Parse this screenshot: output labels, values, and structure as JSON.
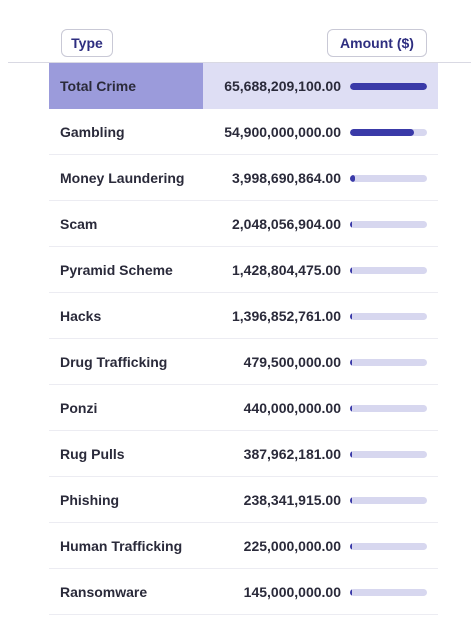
{
  "header": {
    "type_label": "Type",
    "amount_label": "Amount ($)"
  },
  "rows": [
    {
      "type": "Total Crime",
      "amount": "65,688,209,100.00",
      "fraction": 1.0
    },
    {
      "type": "Gambling",
      "amount": "54,900,000,000.00",
      "fraction": 0.8358
    },
    {
      "type": "Money Laundering",
      "amount": "3,998,690,864.00",
      "fraction": 0.0609
    },
    {
      "type": "Scam",
      "amount": "2,048,056,904.00",
      "fraction": 0.0312
    },
    {
      "type": "Pyramid Scheme",
      "amount": "1,428,804,475.00",
      "fraction": 0.0218
    },
    {
      "type": "Hacks",
      "amount": "1,396,852,761.00",
      "fraction": 0.0213
    },
    {
      "type": "Drug Trafficking",
      "amount": "479,500,000.00",
      "fraction": 0.0073
    },
    {
      "type": "Ponzi",
      "amount": "440,000,000.00",
      "fraction": 0.0067
    },
    {
      "type": "Rug Pulls",
      "amount": "387,962,181.00",
      "fraction": 0.0059
    },
    {
      "type": "Phishing",
      "amount": "238,341,915.00",
      "fraction": 0.0036
    },
    {
      "type": "Human Trafficking",
      "amount": "225,000,000.00",
      "fraction": 0.0034
    },
    {
      "type": "Ransomware",
      "amount": "145,000,000.00",
      "fraction": 0.0022
    }
  ],
  "colors": {
    "accent": "#3a3aa8",
    "track": "#d7d7ef",
    "highlight": "#9b9bdb",
    "highlight_row": "#dedef4"
  }
}
